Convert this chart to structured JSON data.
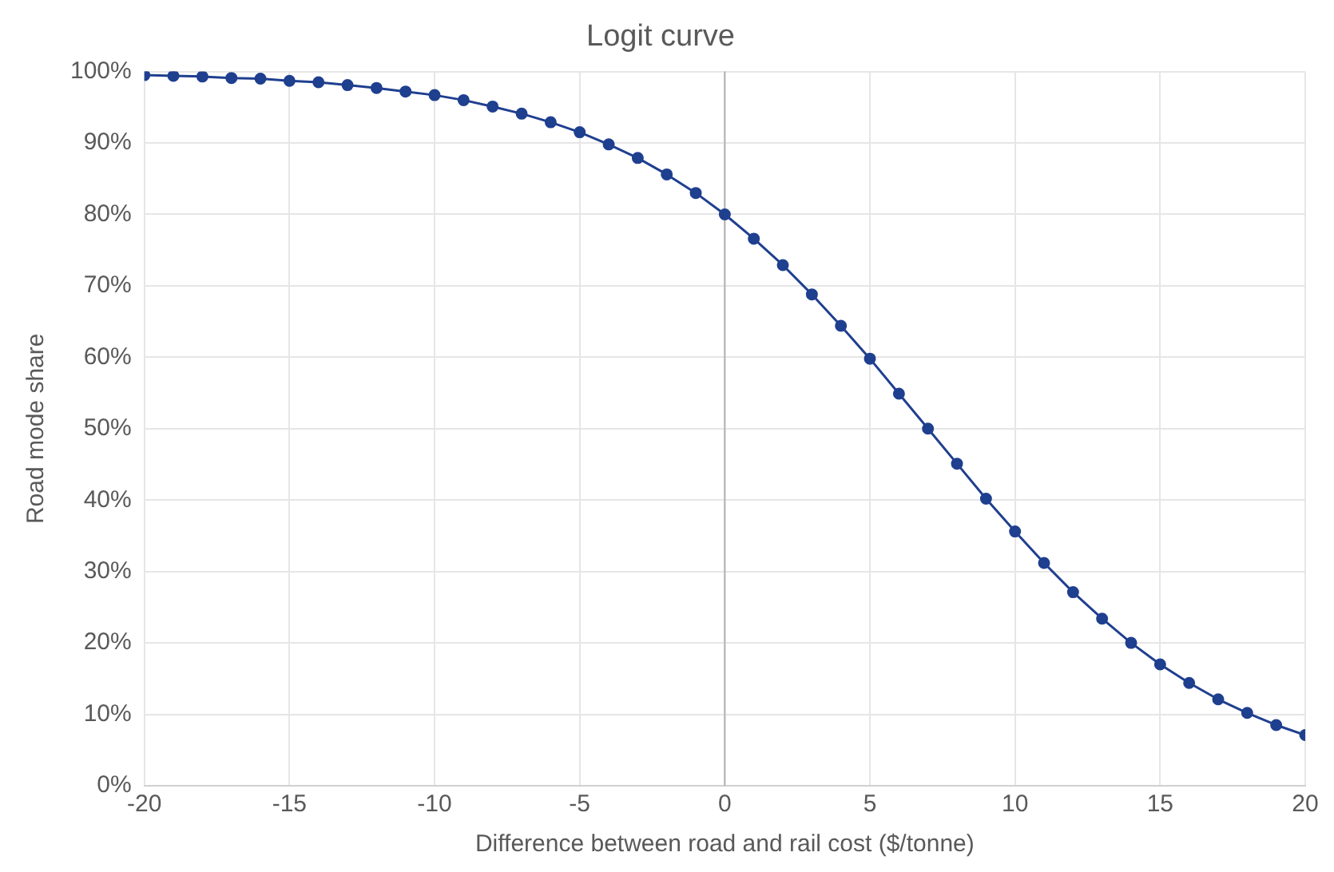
{
  "chart_data": {
    "type": "line",
    "title": "Logit curve",
    "xlabel": "Difference between road and rail cost ($/tonne)",
    "ylabel": "Road mode share",
    "x": [
      -20,
      -19,
      -18,
      -17,
      -16,
      -15,
      -14,
      -13,
      -12,
      -11,
      -10,
      -9,
      -8,
      -7,
      -6,
      -5,
      -4,
      -3,
      -2,
      -1,
      0,
      1,
      2,
      3,
      4,
      5,
      6,
      7,
      8,
      9,
      10,
      11,
      12,
      13,
      14,
      15,
      16,
      17,
      18,
      19,
      20
    ],
    "series": [
      {
        "color": "#1f3f8f",
        "values": [
          99.5,
          99.4,
          99.3,
          99.1,
          99.0,
          98.7,
          98.5,
          98.1,
          97.7,
          97.2,
          96.7,
          96.0,
          95.1,
          94.1,
          92.9,
          91.5,
          89.8,
          87.9,
          85.6,
          83.0,
          80.0,
          76.6,
          72.9,
          68.8,
          64.4,
          59.8,
          54.9,
          50.0,
          45.1,
          40.2,
          35.6,
          31.2,
          27.1,
          23.4,
          20.0,
          17.0,
          14.4,
          12.1,
          10.2,
          8.5,
          7.1
        ]
      }
    ],
    "xlim": [
      -20,
      20
    ],
    "xticks": [
      -20,
      -15,
      -10,
      -5,
      0,
      5,
      10,
      15,
      20
    ],
    "ylim": [
      0,
      100
    ],
    "yticks": [
      {
        "value": 0,
        "label": "0%"
      },
      {
        "value": 10,
        "label": "10%"
      },
      {
        "value": 20,
        "label": "20%"
      },
      {
        "value": 30,
        "label": "30%"
      },
      {
        "value": 40,
        "label": "40%"
      },
      {
        "value": 50,
        "label": "50%"
      },
      {
        "value": 60,
        "label": "60%"
      },
      {
        "value": 70,
        "label": "70%"
      },
      {
        "value": 80,
        "label": "80%"
      },
      {
        "value": 90,
        "label": "90%"
      },
      {
        "value": 100,
        "label": "100%"
      }
    ],
    "ref_lines": [
      {
        "axis": "x",
        "value": 0,
        "color": "#b0b0b0"
      }
    ],
    "grid": true,
    "legend": false,
    "marker": "circle",
    "line_style": "solid"
  }
}
